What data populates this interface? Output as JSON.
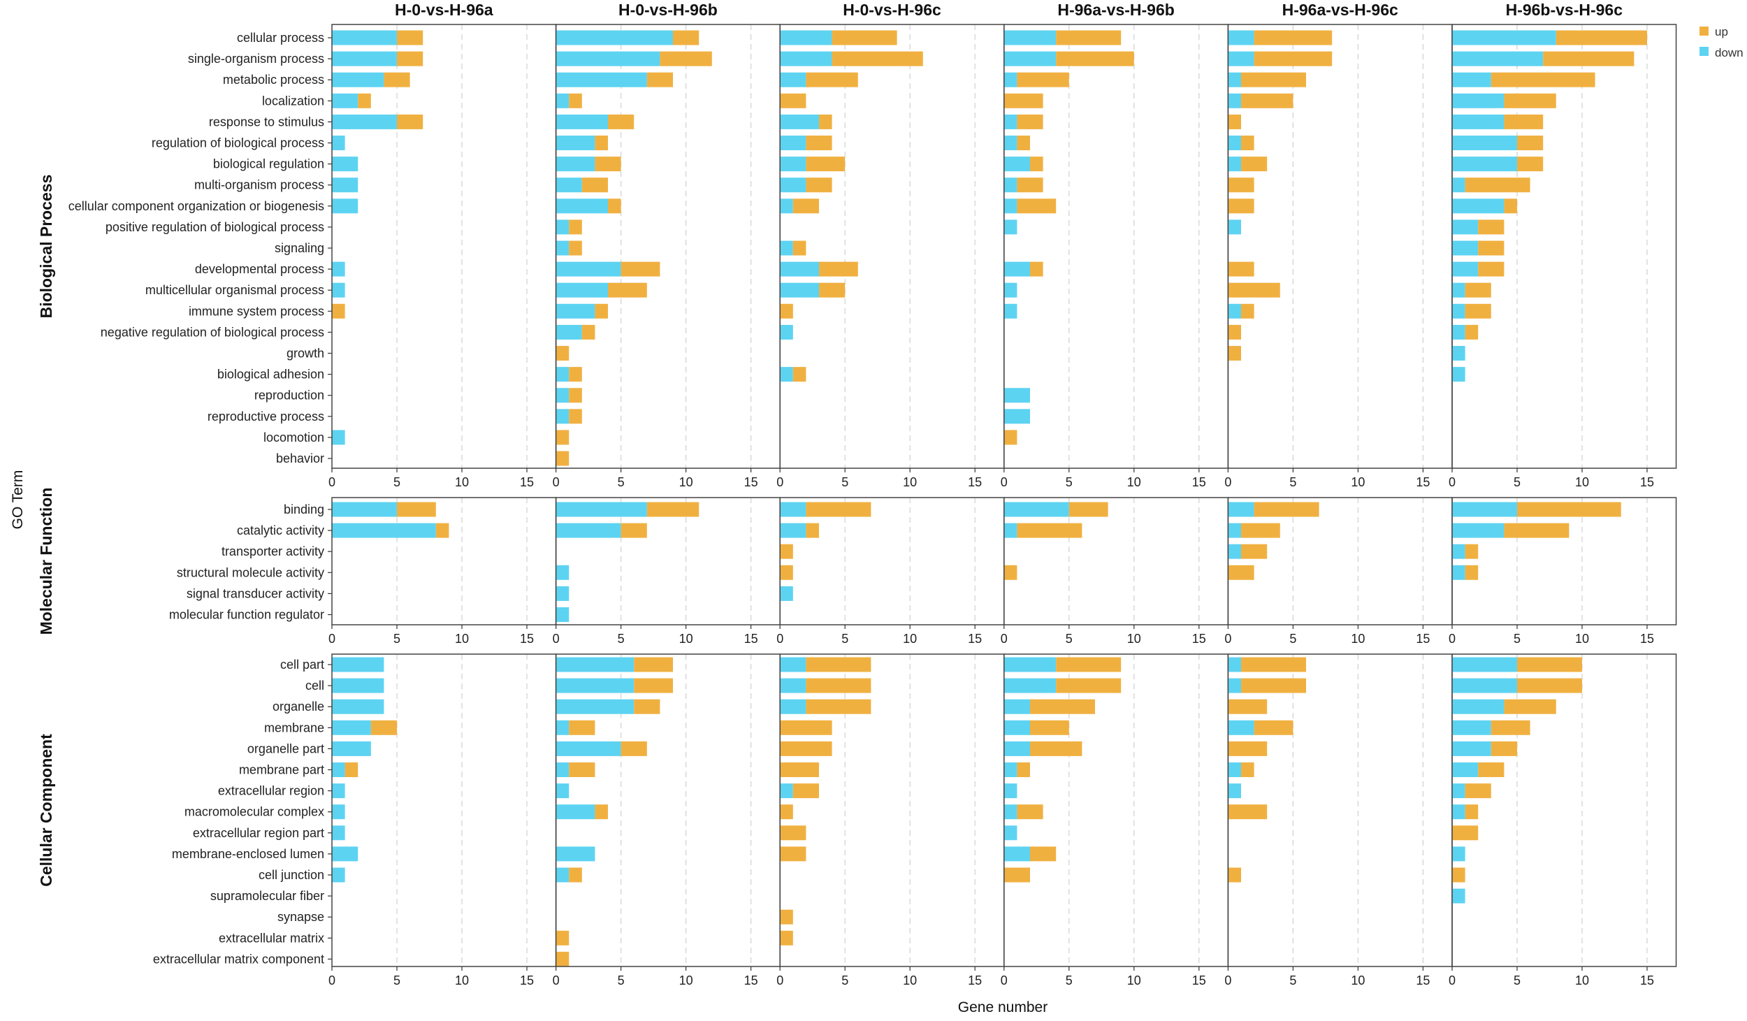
{
  "chart_data": {
    "type": "bar",
    "orientation": "horizontal-stacked",
    "ylabel": "GO Term",
    "xlabel": "Gene number",
    "xlim": [
      0,
      17.5
    ],
    "xticks": [
      0,
      5,
      10,
      15
    ],
    "grid": "vertical dashed",
    "legend_position": "top-right",
    "series": [
      {
        "name": "up",
        "color": "#F0B040"
      },
      {
        "name": "down",
        "color": "#5DD3F2"
      }
    ],
    "comparisons": [
      "H-0-vs-H-96a",
      "H-0-vs-H-96b",
      "H-0-vs-H-96c",
      "H-96a-vs-H-96b",
      "H-96a-vs-H-96c",
      "H-96b-vs-H-96c"
    ],
    "categories": [
      {
        "name": "Biological Process",
        "terms": [
          "cellular process",
          "single-organism process",
          "metabolic process",
          "localization",
          "response to stimulus",
          "regulation of biological process",
          "biological regulation",
          "multi-organism process",
          "cellular component organization or biogenesis",
          "positive regulation of biological process",
          "signaling",
          "developmental process",
          "multicellular organismal process",
          "immune system process",
          "negative regulation of biological process",
          "growth",
          "biological adhesion",
          "reproduction",
          "reproductive process",
          "locomotion",
          "behavior"
        ],
        "down": [
          [
            5,
            5,
            4,
            2,
            5,
            1,
            2,
            2,
            2,
            0,
            0,
            1,
            1,
            0,
            0,
            0,
            0,
            0,
            0,
            1,
            0
          ],
          [
            9,
            8,
            7,
            1,
            4,
            3,
            3,
            2,
            4,
            1,
            1,
            5,
            4,
            3,
            2,
            0,
            1,
            1,
            1,
            0,
            0
          ],
          [
            4,
            4,
            2,
            0,
            3,
            2,
            2,
            2,
            1,
            0,
            1,
            3,
            3,
            0,
            1,
            0,
            1,
            0,
            0,
            0,
            0
          ],
          [
            4,
            4,
            1,
            0,
            1,
            1,
            2,
            1,
            1,
            1,
            0,
            2,
            1,
            1,
            0,
            0,
            0,
            2,
            2,
            0,
            0
          ],
          [
            2,
            2,
            1,
            1,
            0,
            1,
            1,
            0,
            0,
            1,
            0,
            0,
            0,
            1,
            0,
            0,
            0,
            0,
            0,
            0,
            0
          ],
          [
            8,
            7,
            3,
            4,
            4,
            5,
            5,
            1,
            4,
            2,
            2,
            2,
            1,
            1,
            1,
            1,
            1,
            0,
            0,
            0,
            0
          ]
        ],
        "up": [
          [
            2,
            2,
            2,
            1,
            2,
            0,
            0,
            0,
            0,
            0,
            0,
            0,
            0,
            1,
            0,
            0,
            0,
            0,
            0,
            0,
            0
          ],
          [
            2,
            4,
            2,
            1,
            2,
            1,
            2,
            2,
            1,
            1,
            1,
            3,
            3,
            1,
            1,
            1,
            1,
            1,
            1,
            1,
            1
          ],
          [
            5,
            7,
            4,
            2,
            1,
            2,
            3,
            2,
            2,
            0,
            1,
            3,
            2,
            1,
            0,
            0,
            1,
            0,
            0,
            0,
            0
          ],
          [
            5,
            6,
            4,
            3,
            2,
            1,
            1,
            2,
            3,
            0,
            0,
            1,
            0,
            0,
            0,
            0,
            0,
            0,
            0,
            1,
            0
          ],
          [
            6,
            6,
            5,
            4,
            1,
            1,
            2,
            2,
            2,
            0,
            0,
            2,
            4,
            1,
            1,
            1,
            0,
            0,
            0,
            0,
            0
          ],
          [
            7,
            7,
            8,
            4,
            3,
            2,
            2,
            5,
            1,
            2,
            2,
            2,
            2,
            2,
            1,
            0,
            0,
            0,
            0,
            0,
            0
          ]
        ]
      },
      {
        "name": "Molecular Function",
        "terms": [
          "binding",
          "catalytic activity",
          "transporter activity",
          "structural molecule activity",
          "signal transducer activity",
          "molecular function regulator"
        ],
        "down": [
          [
            5,
            8,
            0,
            0,
            0,
            0
          ],
          [
            7,
            5,
            0,
            1,
            1,
            1
          ],
          [
            2,
            2,
            0,
            0,
            1,
            0
          ],
          [
            5,
            1,
            0,
            0,
            0,
            0
          ],
          [
            2,
            1,
            1,
            0,
            0,
            0
          ],
          [
            5,
            4,
            1,
            1,
            0,
            0
          ]
        ],
        "up": [
          [
            3,
            1,
            0,
            0,
            0,
            0
          ],
          [
            4,
            2,
            0,
            0,
            0,
            0
          ],
          [
            5,
            1,
            1,
            1,
            0,
            0
          ],
          [
            3,
            5,
            0,
            1,
            0,
            0
          ],
          [
            5,
            3,
            2,
            2,
            0,
            0
          ],
          [
            8,
            5,
            1,
            1,
            0,
            0
          ]
        ]
      },
      {
        "name": "Cellular Component",
        "terms": [
          "cell part",
          "cell",
          "organelle",
          "membrane",
          "organelle part",
          "membrane part",
          "extracellular region",
          "macromolecular complex",
          "extracellular region part",
          "membrane-enclosed lumen",
          "cell junction",
          "supramolecular fiber",
          "synapse",
          "extracellular matrix",
          "extracellular matrix component"
        ],
        "down": [
          [
            4,
            4,
            4,
            3,
            3,
            1,
            1,
            1,
            1,
            2,
            1,
            0,
            0,
            0,
            0
          ],
          [
            6,
            6,
            6,
            1,
            5,
            1,
            1,
            3,
            0,
            3,
            1,
            0,
            0,
            0,
            0
          ],
          [
            2,
            2,
            2,
            0,
            0,
            0,
            1,
            0,
            0,
            0,
            0,
            0,
            0,
            0,
            0
          ],
          [
            4,
            4,
            2,
            2,
            2,
            1,
            1,
            1,
            1,
            2,
            0,
            0,
            0,
            0,
            0
          ],
          [
            1,
            1,
            0,
            2,
            0,
            1,
            1,
            0,
            0,
            0,
            0,
            0,
            0,
            0,
            0
          ],
          [
            5,
            5,
            4,
            3,
            3,
            2,
            1,
            1,
            0,
            1,
            0,
            1,
            0,
            0,
            0
          ]
        ],
        "up": [
          [
            0,
            0,
            0,
            2,
            0,
            1,
            0,
            0,
            0,
            0,
            0,
            0,
            0,
            0,
            0
          ],
          [
            3,
            3,
            2,
            2,
            2,
            2,
            0,
            1,
            0,
            0,
            1,
            0,
            0,
            1,
            1
          ],
          [
            5,
            5,
            5,
            4,
            4,
            3,
            2,
            1,
            2,
            2,
            0,
            0,
            1,
            1,
            0
          ],
          [
            5,
            5,
            5,
            3,
            4,
            1,
            0,
            2,
            0,
            2,
            2,
            0,
            0,
            0,
            0
          ],
          [
            5,
            5,
            3,
            3,
            3,
            1,
            0,
            3,
            0,
            0,
            1,
            0,
            0,
            0,
            0
          ],
          [
            5,
            5,
            4,
            3,
            2,
            2,
            2,
            1,
            2,
            0,
            1,
            0,
            0,
            0,
            0
          ]
        ]
      }
    ]
  }
}
